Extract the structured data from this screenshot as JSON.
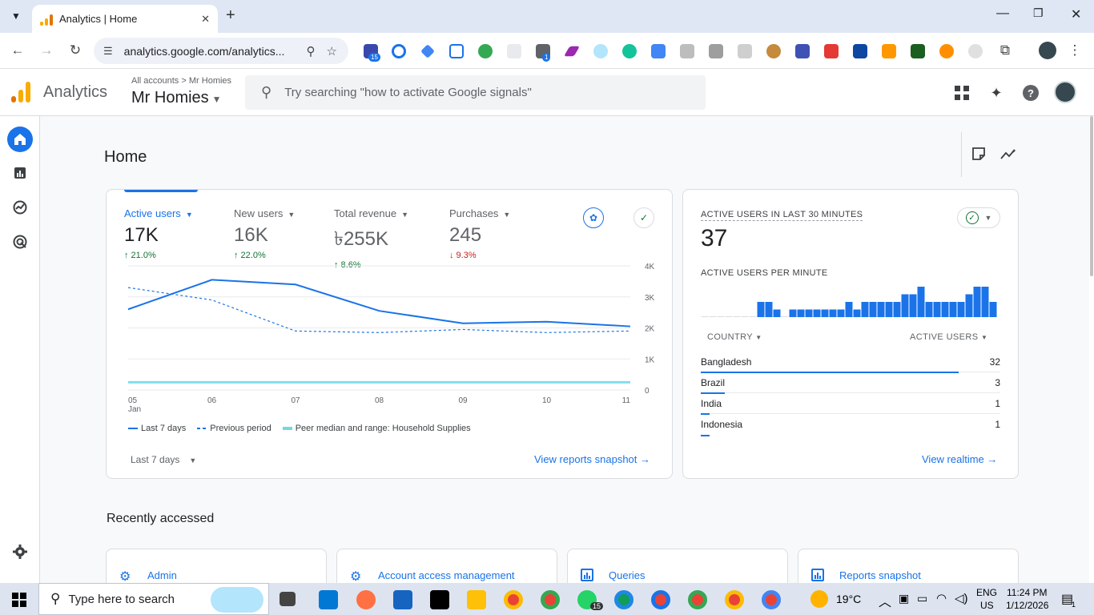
{
  "browser": {
    "tab_title": "Analytics | Home",
    "url": "analytics.google.com/analytics..."
  },
  "header": {
    "product": "Analytics",
    "breadcrumb_root": "All accounts",
    "breadcrumb_sep": ">",
    "breadcrumb_account": "Mr Homies",
    "account_name": "Mr Homies",
    "search_placeholder": "Try searching \"how to activate Google signals\""
  },
  "page": {
    "title": "Home"
  },
  "metrics": [
    {
      "label": "Active users",
      "value": "17K",
      "change": "↑ 21.0%",
      "direction": "up"
    },
    {
      "label": "New users",
      "value": "16K",
      "change": "↑ 22.0%",
      "direction": "up"
    },
    {
      "label": "Total revenue",
      "value": "৳255K",
      "change": "↑ 8.6%",
      "direction": "up"
    },
    {
      "label": "Purchases",
      "value": "245",
      "change": "↓ 9.3%",
      "direction": "down"
    }
  ],
  "chart_data": {
    "type": "line",
    "x": [
      "05",
      "06",
      "07",
      "08",
      "09",
      "10",
      "11"
    ],
    "x_sublabel": "Jan",
    "y_ticks": [
      "4K",
      "3K",
      "2K",
      "1K",
      "0"
    ],
    "ylim": [
      0,
      4000
    ],
    "series": [
      {
        "name": "Last 7 days",
        "style": "solid",
        "color": "#1a73e8",
        "values": [
          2600,
          3550,
          3400,
          2550,
          2150,
          2200,
          2050
        ]
      },
      {
        "name": "Previous period",
        "style": "dashed",
        "color": "#1a73e8",
        "values": [
          3300,
          2900,
          1900,
          1850,
          1950,
          1850,
          1900
        ]
      },
      {
        "name": "Peer median and range: Household Supplies",
        "style": "band",
        "color": "#4ecde6",
        "values": [
          250,
          250,
          250,
          250,
          250,
          250,
          250
        ]
      }
    ]
  },
  "overview_card": {
    "date_range": "Last 7 days",
    "view_link": "View reports snapshot"
  },
  "realtime": {
    "title": "ACTIVE USERS IN LAST 30 MINUTES",
    "value": "37",
    "per_minute_label": "ACTIVE USERS PER MINUTE",
    "per_minute_values": [
      0,
      0,
      0,
      0,
      0,
      0,
      0,
      2,
      2,
      1,
      0,
      1,
      1,
      1,
      1,
      1,
      1,
      1,
      2,
      1,
      2,
      2,
      2,
      2,
      2,
      3,
      3,
      4,
      2,
      2,
      2,
      2,
      2,
      3,
      4,
      4,
      2
    ],
    "col_country": "COUNTRY",
    "col_users": "ACTIVE USERS",
    "rows": [
      {
        "country": "Bangladesh",
        "users": "32",
        "share": 0.86
      },
      {
        "country": "Brazil",
        "users": "3",
        "share": 0.08
      },
      {
        "country": "India",
        "users": "1",
        "share": 0.03
      },
      {
        "country": "Indonesia",
        "users": "1",
        "share": 0.03
      }
    ],
    "view_link": "View realtime"
  },
  "recent": {
    "title": "Recently accessed",
    "items": [
      "Admin",
      "Account access management",
      "Queries",
      "Reports snapshot"
    ]
  },
  "taskbar": {
    "search_placeholder": "Type here to search",
    "weather": "19°C",
    "lang1": "ENG",
    "lang2": "US",
    "time": "11:24 PM",
    "date": "1/12/2026",
    "whatsapp_badge": "15",
    "notif_badge": "1"
  },
  "extensions": {
    "badge1": "15",
    "badge2": "1"
  },
  "colors": {
    "accent": "#1a73e8",
    "up": "#137333",
    "down": "#c5221f",
    "peer": "#4ecde6",
    "ga_orange": "#f9ab00",
    "ga_dark_orange": "#e37400"
  }
}
